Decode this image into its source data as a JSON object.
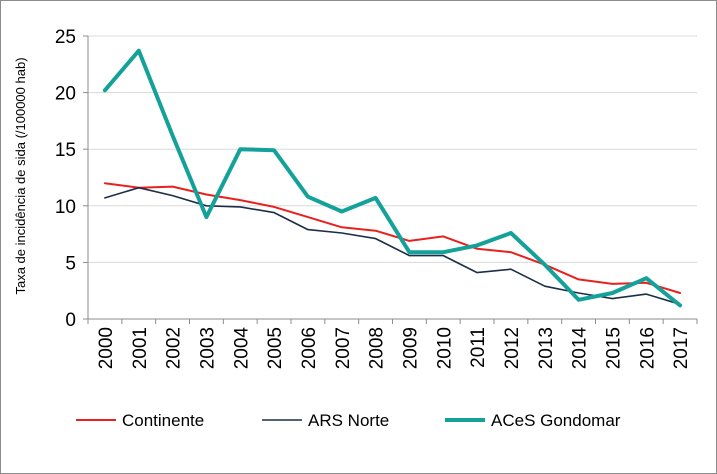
{
  "chart_data": {
    "type": "line",
    "title": "",
    "xlabel": "",
    "ylabel": "Taxa de incidência de sida (/100000 hab)",
    "x": [
      "2000",
      "2001",
      "2002",
      "2003",
      "2004",
      "2005",
      "2006",
      "2007",
      "2008",
      "2009",
      "2010",
      "2011",
      "2012",
      "2013",
      "2014",
      "2015",
      "2016",
      "2017"
    ],
    "ylim": [
      0,
      25
    ],
    "yticks": [
      0,
      5,
      10,
      15,
      20,
      25
    ],
    "grid": "horizontal",
    "legend_position": "bottom",
    "series": [
      {
        "name": "Continente",
        "color": "#e8211e",
        "values": [
          12.0,
          11.6,
          11.7,
          11.0,
          10.5,
          9.9,
          9.0,
          8.1,
          7.8,
          6.9,
          7.3,
          6.2,
          5.9,
          4.8,
          3.5,
          3.1,
          3.2,
          2.3
        ]
      },
      {
        "name": "ARS Norte",
        "color": "#1b2f48",
        "values": [
          10.7,
          11.6,
          10.9,
          10.0,
          9.9,
          9.4,
          7.9,
          7.6,
          7.1,
          5.6,
          5.6,
          4.1,
          4.4,
          2.9,
          2.3,
          1.8,
          2.2,
          1.3
        ]
      },
      {
        "name": "ACeS Gondomar",
        "color": "#14a19a",
        "values": [
          20.2,
          23.7,
          16.2,
          9.0,
          15.0,
          14.9,
          10.8,
          9.5,
          10.7,
          5.9,
          5.9,
          6.5,
          7.6,
          4.8,
          1.7,
          2.3,
          3.6,
          1.2
        ]
      }
    ]
  }
}
